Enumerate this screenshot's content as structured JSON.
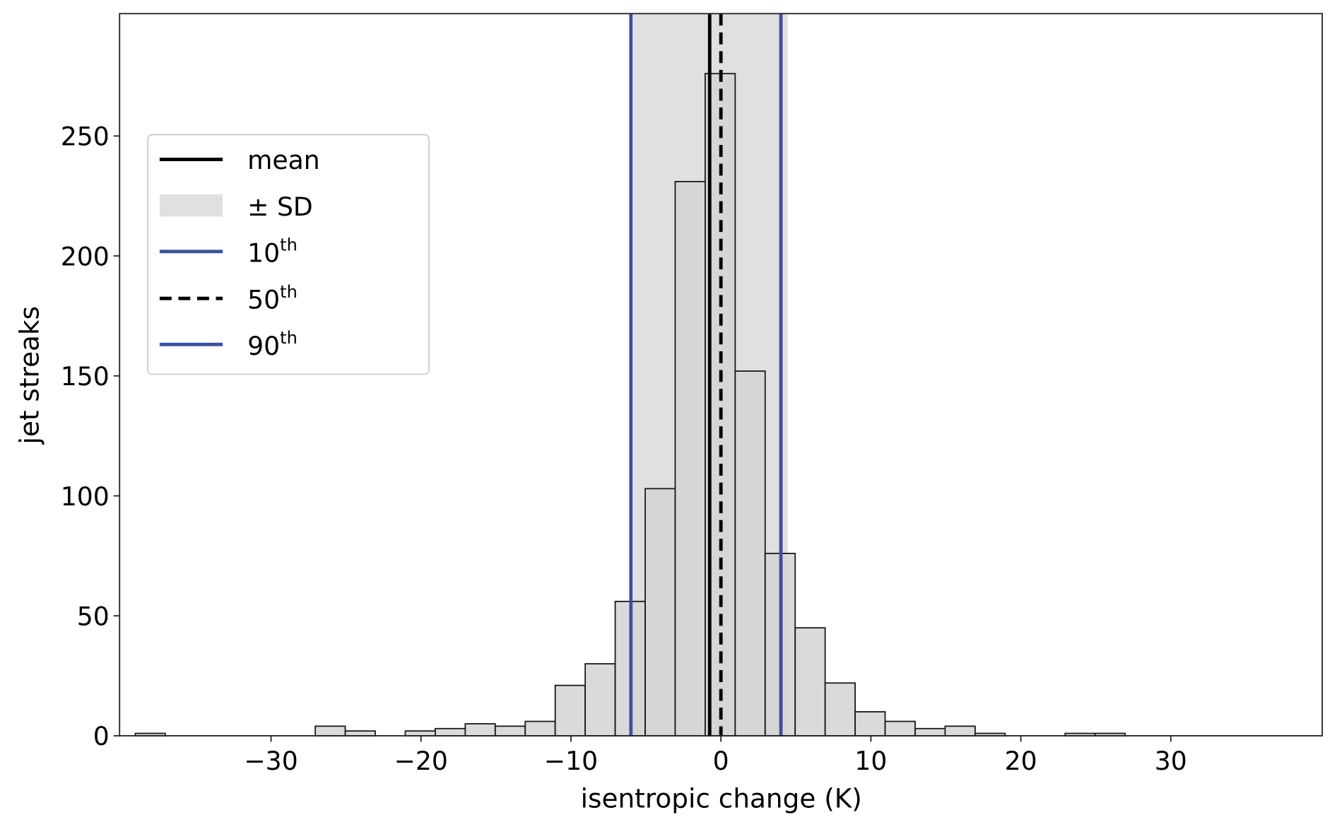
{
  "chart_data": {
    "type": "bar",
    "subtype": "histogram",
    "xlabel": "isentropic change (K)",
    "ylabel": "jet streaks",
    "xlim": [
      -40.1,
      40.1
    ],
    "ylim": [
      0,
      301
    ],
    "xticks": [
      -30,
      -20,
      -10,
      0,
      10,
      20,
      30
    ],
    "xtick_labels": [
      "−30",
      "−20",
      "−10",
      "0",
      "10",
      "20",
      "30"
    ],
    "yticks": [
      0,
      50,
      100,
      150,
      200,
      250
    ],
    "ytick_labels": [
      "0",
      "50",
      "100",
      "150",
      "200",
      "250"
    ],
    "grid": false,
    "bin_width": 2,
    "bins": [
      {
        "left": -39.05,
        "count": 1
      },
      {
        "left": -37.05,
        "count": 0
      },
      {
        "left": -35.05,
        "count": 0
      },
      {
        "left": -33.05,
        "count": 0
      },
      {
        "left": -31.05,
        "count": 0
      },
      {
        "left": -29.05,
        "count": 0
      },
      {
        "left": -27.05,
        "count": 4
      },
      {
        "left": -25.05,
        "count": 2
      },
      {
        "left": -23.05,
        "count": 0
      },
      {
        "left": -21.05,
        "count": 2
      },
      {
        "left": -19.05,
        "count": 3
      },
      {
        "left": -17.05,
        "count": 5
      },
      {
        "left": -15.05,
        "count": 4
      },
      {
        "left": -13.05,
        "count": 6
      },
      {
        "left": -11.05,
        "count": 21
      },
      {
        "left": -9.05,
        "count": 30
      },
      {
        "left": -7.05,
        "count": 56
      },
      {
        "left": -5.05,
        "count": 103
      },
      {
        "left": -3.05,
        "count": 231
      },
      {
        "left": -1.05,
        "count": 276
      },
      {
        "left": 0.95,
        "count": 152
      },
      {
        "left": 2.95,
        "count": 76
      },
      {
        "left": 4.95,
        "count": 45
      },
      {
        "left": 6.95,
        "count": 22
      },
      {
        "left": 8.95,
        "count": 10
      },
      {
        "left": 10.95,
        "count": 6
      },
      {
        "left": 12.95,
        "count": 3
      },
      {
        "left": 14.95,
        "count": 4
      },
      {
        "left": 16.95,
        "count": 1
      },
      {
        "left": 18.95,
        "count": 0
      },
      {
        "left": 20.95,
        "count": 0
      },
      {
        "left": 22.95,
        "count": 1
      },
      {
        "left": 24.95,
        "count": 1
      },
      {
        "left": 26.95,
        "count": 0
      },
      {
        "left": 28.95,
        "count": 0
      },
      {
        "left": 30.95,
        "count": 0
      },
      {
        "left": 32.95,
        "count": 0
      },
      {
        "left": 34.95,
        "count": 0
      },
      {
        "left": 36.95,
        "count": 0
      }
    ],
    "statistics": {
      "mean": -0.75,
      "sd_range": [
        -5.85,
        4.45
      ],
      "p10": -6.0,
      "p50": 0.0,
      "p90": 4.0
    },
    "legend": {
      "placement": "upper-left",
      "entries": [
        {
          "key": "mean",
          "label": "mean",
          "sup": ""
        },
        {
          "key": "sd",
          "label": "± SD",
          "sup": ""
        },
        {
          "key": "p10",
          "label": "10",
          "sup": "th"
        },
        {
          "key": "p50",
          "label": "50",
          "sup": "th"
        },
        {
          "key": "p90",
          "label": "90",
          "sup": "th"
        }
      ]
    },
    "colors": {
      "bar_fill": "#d4d4d4",
      "bar_edge": "#1a1a1a",
      "sd_band": "#e0e0e0",
      "percentile_blue": "#3a50a0",
      "mean": "#000000",
      "median": "#000000"
    }
  }
}
